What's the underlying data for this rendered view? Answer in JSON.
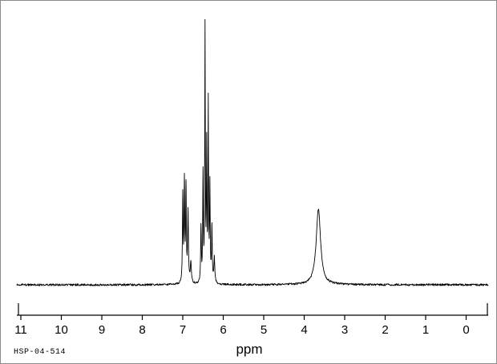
{
  "chart_data": {
    "type": "line",
    "title": "",
    "xlabel": "ppm",
    "ylabel": "",
    "sample_id": "HSP-04-514",
    "line_color": "#000000",
    "grid": false,
    "legend": false,
    "x_axis": {
      "min": -0.6,
      "max": 11.1,
      "reversed": true,
      "ticks": [
        11,
        10,
        9,
        8,
        7,
        6,
        5,
        4,
        3,
        2,
        1,
        0
      ]
    },
    "ylim": [
      0,
      1.05
    ],
    "peak_height_unit": "fraction_of_tallest_peak",
    "peak_width_unit": "ppm_half_width_lorentzian",
    "baseline_noise": 0.004,
    "peaks": [
      {
        "ppm": 7.0,
        "height": 0.34,
        "width": 0.01
      },
      {
        "ppm": 6.96,
        "height": 0.39,
        "width": 0.01
      },
      {
        "ppm": 6.92,
        "height": 0.37,
        "width": 0.01
      },
      {
        "ppm": 6.87,
        "height": 0.28,
        "width": 0.012
      },
      {
        "ppm": 6.8,
        "height": 0.08,
        "width": 0.015
      },
      {
        "ppm": 6.55,
        "height": 0.22,
        "width": 0.01
      },
      {
        "ppm": 6.5,
        "height": 0.42,
        "width": 0.009
      },
      {
        "ppm": 6.45,
        "height": 1.0,
        "width": 0.008
      },
      {
        "ppm": 6.41,
        "height": 0.52,
        "width": 0.008
      },
      {
        "ppm": 6.37,
        "height": 0.7,
        "width": 0.008
      },
      {
        "ppm": 6.33,
        "height": 0.38,
        "width": 0.009
      },
      {
        "ppm": 6.28,
        "height": 0.22,
        "width": 0.01
      },
      {
        "ppm": 6.22,
        "height": 0.1,
        "width": 0.014
      },
      {
        "ppm": 3.65,
        "height": 0.3,
        "width": 0.065
      }
    ]
  }
}
